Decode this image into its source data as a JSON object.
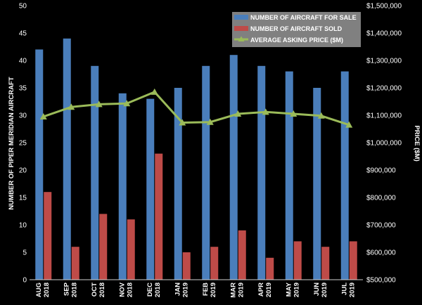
{
  "chart_data": {
    "type": "bar",
    "categories": [
      [
        "AUG",
        "2018"
      ],
      [
        "SEP",
        "2018"
      ],
      [
        "OCT",
        "2018"
      ],
      [
        "NOV",
        "2018"
      ],
      [
        "DEC",
        "2018"
      ],
      [
        "JAN",
        "2019"
      ],
      [
        "FEB",
        "2019"
      ],
      [
        "MAR",
        "2019"
      ],
      [
        "APR",
        "2019"
      ],
      [
        "MAY",
        "2019"
      ],
      [
        "JUN",
        "2019"
      ],
      [
        "JUL",
        "2019"
      ]
    ],
    "series": [
      {
        "name": "NUMBER OF AIRCRAFT FOR SALE",
        "kind": "bar",
        "axis": "left",
        "color": "#4a7ebb",
        "values": [
          42,
          44,
          39,
          34,
          33,
          35,
          39,
          41,
          39,
          38,
          35,
          38
        ]
      },
      {
        "name": "NUMBER OF AIRCRAFT SOLD",
        "kind": "bar",
        "axis": "left",
        "color": "#be4b48",
        "values": [
          16,
          6,
          12,
          11,
          23,
          5,
          6,
          9,
          4,
          7,
          6,
          7
        ]
      },
      {
        "name": "AVERAGE ASKING PRICE ($M)",
        "kind": "line",
        "axis": "right",
        "color": "#9bbb59",
        "values": [
          1095000,
          1130000,
          1140000,
          1143000,
          1185000,
          1073000,
          1075000,
          1105000,
          1112000,
          1105000,
          1098000,
          1065000
        ]
      }
    ],
    "y_left": {
      "label": "NUMBER OF PIPER MERIDIAN AIRCRAFT",
      "lim": [
        0,
        50
      ],
      "ticks": [
        "0",
        "5",
        "10",
        "15",
        "20",
        "25",
        "30",
        "35",
        "40",
        "45",
        "50"
      ]
    },
    "y_right": {
      "label": "PRICE ($M)",
      "lim": [
        500000,
        1500000
      ],
      "ticks": [
        "$500,000",
        "$600,000",
        "$700,000",
        "$800,000",
        "$900,000",
        "$1,000,000",
        "$1,100,000",
        "$1,200,000",
        "$1,300,000",
        "$1,400,000",
        "$1,500,000"
      ]
    },
    "grid": false,
    "legend_position": "top-right",
    "colors": {
      "background": "#000000",
      "plot_background": "#000000",
      "text": "#ffffff",
      "legend_background": "#808080"
    }
  }
}
